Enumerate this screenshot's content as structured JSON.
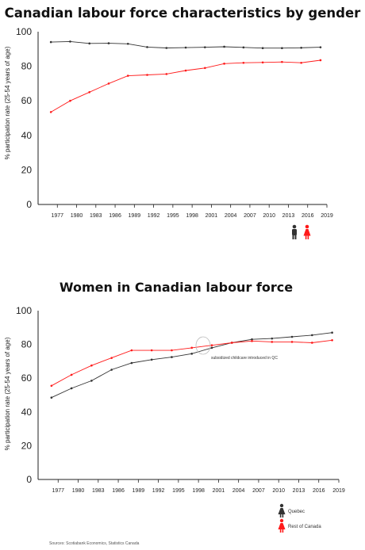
{
  "colors": {
    "men_series": "#333333",
    "women_series": "#ff1a1a",
    "axis": "#222222"
  },
  "chart_data": [
    {
      "type": "line",
      "title": "Canadian labour force characteristics by gender",
      "xlabel": "",
      "ylabel": "% participation rate (25-54 years of age)",
      "xlim": [
        1974,
        2019
      ],
      "ylim": [
        0,
        100
      ],
      "yticks": [
        "0",
        "20",
        "40",
        "60",
        "80",
        "100"
      ],
      "xticks": [
        "1977",
        "1980",
        "1983",
        "1986",
        "1989",
        "1992",
        "1995",
        "1998",
        "2001",
        "2004",
        "2007",
        "2010",
        "2013",
        "2016",
        "2019"
      ],
      "series": [
        {
          "legend_icon": "man-icon",
          "values": [
            [
              1976,
              94
            ],
            [
              1979,
              94.3
            ],
            [
              1982,
              93.2
            ],
            [
              1985,
              93.3
            ],
            [
              1988,
              93
            ],
            [
              1991,
              91.1
            ],
            [
              1994,
              90.6
            ],
            [
              1997,
              90.8
            ],
            [
              2000,
              91
            ],
            [
              2003,
              91.3
            ],
            [
              2006,
              90.9
            ],
            [
              2009,
              90.5
            ],
            [
              2012,
              90.5
            ],
            [
              2015,
              90.7
            ],
            [
              2018,
              91
            ]
          ]
        },
        {
          "legend_icon": "woman-icon",
          "values": [
            [
              1976,
              53.5
            ],
            [
              1979,
              60
            ],
            [
              1982,
              65
            ],
            [
              1985,
              70
            ],
            [
              1988,
              74.5
            ],
            [
              1991,
              75
            ],
            [
              1994,
              75.5
            ],
            [
              1997,
              77.5
            ],
            [
              2000,
              79
            ],
            [
              2003,
              81.5
            ],
            [
              2006,
              82
            ],
            [
              2009,
              82.2
            ],
            [
              2012,
              82.5
            ],
            [
              2015,
              82
            ],
            [
              2018,
              83.5
            ]
          ]
        }
      ],
      "legend": "bottom-right"
    },
    {
      "type": "line",
      "title": "Women in Canadian labour force",
      "xlabel": "",
      "ylabel": "% participation rate (25-54 years of age)",
      "xlim": [
        1974,
        2019
      ],
      "ylim": [
        0,
        100
      ],
      "yticks": [
        "0",
        "20",
        "40",
        "60",
        "80",
        "100"
      ],
      "xticks": [
        "1977",
        "1980",
        "1983",
        "1986",
        "1989",
        "1992",
        "1995",
        "1998",
        "2001",
        "2004",
        "2007",
        "2010",
        "2013",
        "2016",
        "2019"
      ],
      "series": [
        {
          "name": "Quebec",
          "legend_icon": "woman-icon",
          "values": [
            [
              1976,
              48.5
            ],
            [
              1979,
              54
            ],
            [
              1982,
              58.5
            ],
            [
              1985,
              65
            ],
            [
              1988,
              69
            ],
            [
              1991,
              71
            ],
            [
              1994,
              72.5
            ],
            [
              1997,
              74.5
            ],
            [
              2000,
              78
            ],
            [
              2003,
              81
            ],
            [
              2006,
              83
            ],
            [
              2009,
              83.5
            ],
            [
              2012,
              84.5
            ],
            [
              2015,
              85.5
            ],
            [
              2018,
              87
            ]
          ]
        },
        {
          "name": "Rest of Canada",
          "legend_icon": "woman-icon",
          "values": [
            [
              1976,
              55.5
            ],
            [
              1979,
              62
            ],
            [
              1982,
              67.5
            ],
            [
              1985,
              72
            ],
            [
              1988,
              76.5
            ],
            [
              1991,
              76.5
            ],
            [
              1994,
              76.5
            ],
            [
              1997,
              78
            ],
            [
              2000,
              79.5
            ],
            [
              2003,
              81
            ],
            [
              2006,
              82
            ],
            [
              2009,
              81.5
            ],
            [
              2012,
              81.5
            ],
            [
              2015,
              81
            ],
            [
              2018,
              82.5
            ]
          ]
        }
      ],
      "annotations": [
        {
          "text": "subsidized childcare introduced in QC",
          "x": 1998,
          "y": 76.5
        }
      ],
      "legend": "bottom-right"
    }
  ],
  "footer": {
    "source": "Sources: Scotiabank Economics, Statistics Canada"
  }
}
